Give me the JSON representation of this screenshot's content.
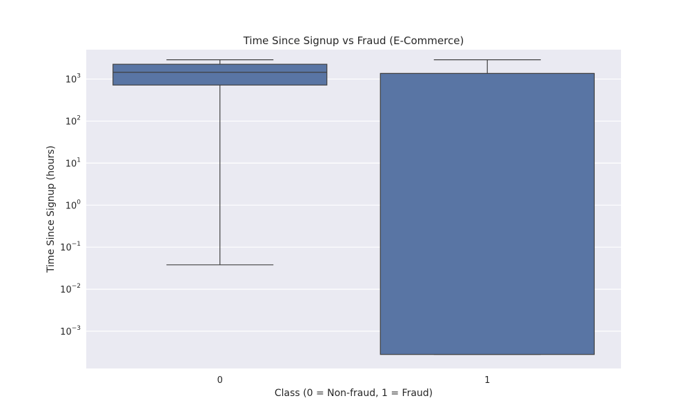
{
  "chart_data": {
    "type": "box",
    "title": "Time Since Signup vs Fraud (E-Commerce)",
    "xlabel": "Class (0 = Non-fraud, 1 = Fraud)",
    "ylabel": "Time Since Signup (hours)",
    "yscale": "log",
    "ylim": [
      0.00013,
      5000
    ],
    "grid": true,
    "yticks": [
      {
        "base": "10",
        "exp": "3",
        "value": 1000
      },
      {
        "base": "10",
        "exp": "2",
        "value": 100
      },
      {
        "base": "10",
        "exp": "1",
        "value": 10
      },
      {
        "base": "10",
        "exp": "0",
        "value": 1
      },
      {
        "base": "10",
        "exp": "−1",
        "value": 0.1
      },
      {
        "base": "10",
        "exp": "−2",
        "value": 0.01
      },
      {
        "base": "10",
        "exp": "−3",
        "value": 0.001
      }
    ],
    "categories": [
      "0",
      "1"
    ],
    "boxes": [
      {
        "category": "0",
        "whisker_low": 0.038,
        "q1": 720,
        "median": 1450,
        "q3": 2250,
        "whisker_high": 2880
      },
      {
        "category": "1",
        "whisker_low": 0.00028,
        "q1": 0.00028,
        "median": 1360,
        "q3": 1360,
        "whisker_high": 2880
      }
    ],
    "color": "#5975a4",
    "background": "#eaeaf2"
  }
}
